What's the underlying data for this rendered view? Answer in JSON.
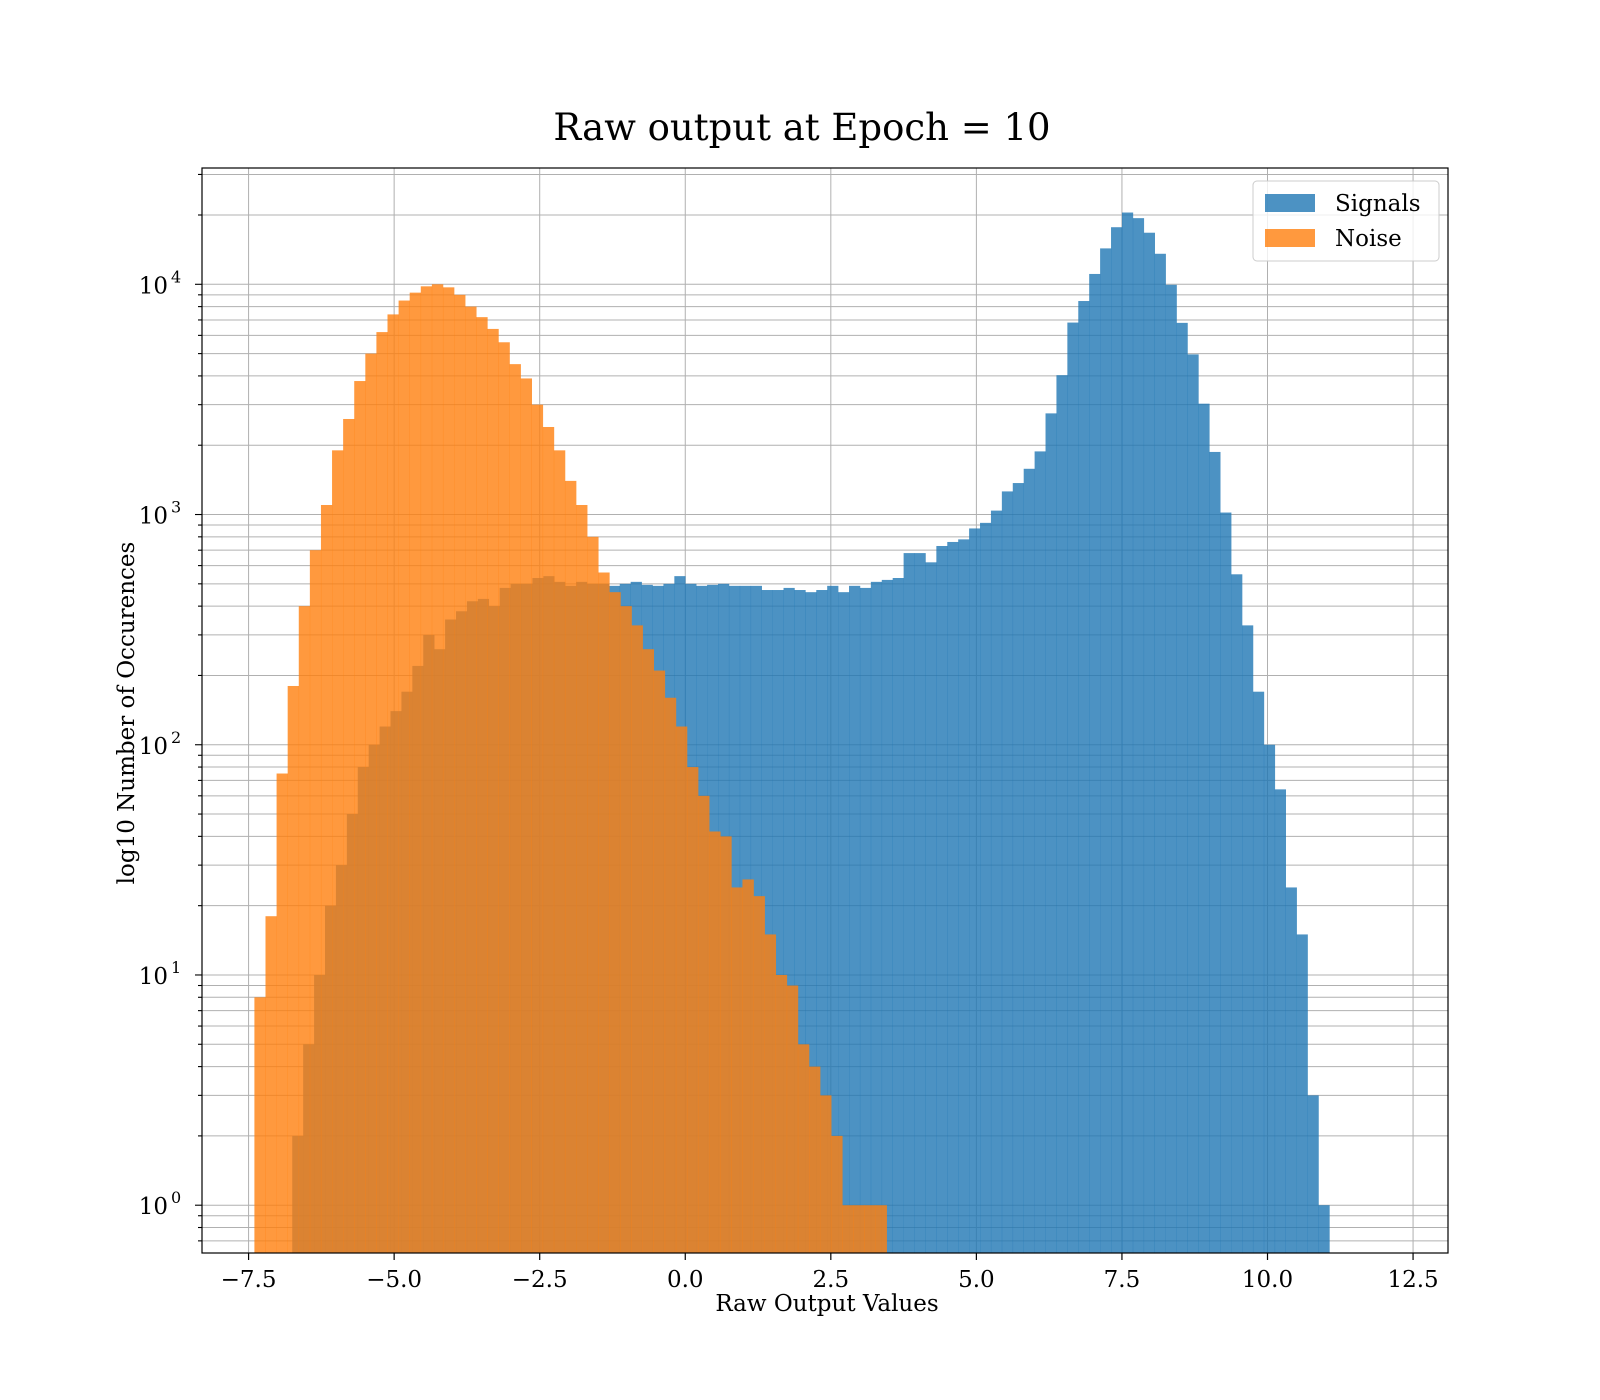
{
  "chart_data": {
    "type": "histogram",
    "title": "Raw output at Epoch = 10",
    "xlabel": "Raw Output Values",
    "ylabel": "log10 Number of Occurences",
    "xlim": [
      -8.3,
      13.1
    ],
    "ylim": [
      0.62,
      32000
    ],
    "yscale": "log",
    "grid": true,
    "legend_position": "top-right",
    "xticks": [
      "−7.5",
      "−5.0",
      "−2.5",
      "0.0",
      "2.5",
      "5.0",
      "7.5",
      "10.0",
      "12.5"
    ],
    "xtick_values": [
      -7.5,
      -5.0,
      -2.5,
      0.0,
      2.5,
      5.0,
      7.5,
      10.0,
      12.5
    ],
    "yticks": [
      {
        "value": 1,
        "base": "10",
        "exp": "0"
      },
      {
        "value": 10,
        "base": "10",
        "exp": "1"
      },
      {
        "value": 100,
        "base": "10",
        "exp": "2"
      },
      {
        "value": 1000,
        "base": "10",
        "exp": "3"
      },
      {
        "value": 10000,
        "base": "10",
        "exp": "4"
      }
    ],
    "series": [
      {
        "name": "Signals",
        "color": "#1f77b4",
        "alpha": 0.8,
        "bin_start": -6.75,
        "bin_width": 0.1875,
        "values": [
          2,
          5,
          10,
          20,
          30,
          50,
          80,
          100,
          120,
          140,
          170,
          220,
          300,
          260,
          350,
          380,
          420,
          430,
          400,
          480,
          500,
          500,
          530,
          540,
          510,
          490,
          510,
          500,
          500,
          490,
          500,
          510,
          495,
          490,
          500,
          540,
          500,
          490,
          495,
          500,
          490,
          490,
          490,
          470,
          470,
          480,
          470,
          460,
          470,
          490,
          460,
          490,
          480,
          510,
          520,
          530,
          680,
          680,
          620,
          730,
          760,
          780,
          870,
          920,
          1040,
          1260,
          1370,
          1580,
          1880,
          2750,
          4030,
          6820,
          8460,
          11090,
          14320,
          17700,
          20500,
          19380,
          16750,
          13570,
          9950,
          6800,
          4960,
          3030,
          1870,
          1020,
          550,
          330,
          170,
          100,
          64,
          24,
          15,
          3,
          1
        ]
      },
      {
        "name": "Noise",
        "color": "#ff7f0e",
        "alpha": 0.8,
        "bin_start": -7.4,
        "bin_width": 0.1905,
        "values": [
          8,
          18,
          75,
          180,
          400,
          700,
          1100,
          1900,
          2600,
          3800,
          5000,
          6200,
          7400,
          8500,
          9200,
          9800,
          10000,
          9700,
          9000,
          8000,
          7200,
          6400,
          5600,
          4500,
          3900,
          3000,
          2400,
          1900,
          1400,
          1100,
          800,
          560,
          460,
          400,
          330,
          260,
          210,
          160,
          120,
          80,
          60,
          42,
          40,
          24,
          26,
          22,
          15,
          10,
          9,
          5,
          4,
          3,
          2,
          1,
          1,
          1,
          1
        ]
      }
    ]
  }
}
